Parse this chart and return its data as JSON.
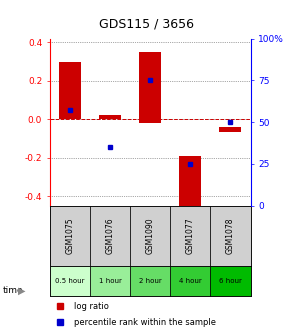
{
  "title": "GDS115 / 3656",
  "samples": [
    "GSM1075",
    "GSM1076",
    "GSM1090",
    "GSM1077",
    "GSM1078"
  ],
  "time_labels": [
    "0.5 hour",
    "1 hour",
    "2 hour",
    "4 hour",
    "6 hour"
  ],
  "time_colors": [
    "#ccffcc",
    "#99ee99",
    "#66dd66",
    "#33cc33",
    "#00bb00"
  ],
  "bar_bottoms": [
    0.0,
    0.0,
    -0.02,
    -0.45,
    -0.065
  ],
  "bar_tops": [
    0.3,
    0.02,
    0.35,
    -0.19,
    -0.04
  ],
  "percentile_ranks": [
    57,
    35,
    75,
    25,
    50
  ],
  "ylim": [
    -0.45,
    0.42
  ],
  "yticks_left": [
    -0.4,
    -0.2,
    0.0,
    0.2,
    0.4
  ],
  "yticks_right_pct": [
    0,
    25,
    50,
    75,
    100
  ],
  "bar_color": "#cc0000",
  "dot_color": "#0000cc",
  "legend_log_ratio": "log ratio",
  "legend_percentile": "percentile rank within the sample",
  "background_color": "#ffffff",
  "dotted_line_color": "#555555",
  "zero_line_color": "#cc0000",
  "sample_bg_color": "#d0d0d0",
  "sample_border_color": "#888888"
}
